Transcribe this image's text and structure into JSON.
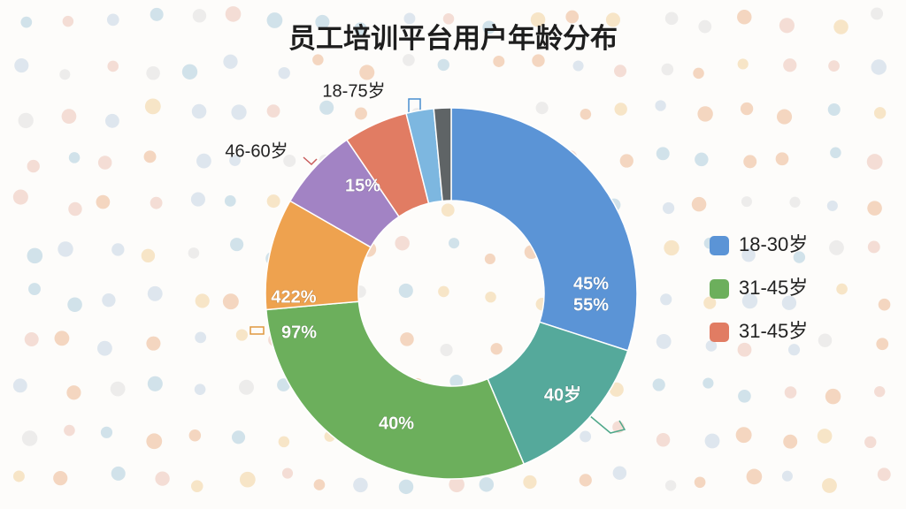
{
  "chart_data": {
    "type": "pie",
    "title": "员工培训平台用户年龄分布",
    "values": [
      30,
      13.6,
      30,
      9.7,
      7.2,
      5.6,
      2.4,
      1.5
    ],
    "colors": [
      "#5b94d6",
      "#55a99b",
      "#6caf5c",
      "#eea24f",
      "#a283c4",
      "#e17c63",
      "#7db7e0",
      "#5f6466"
    ],
    "legend": [
      {
        "name": "18-30岁",
        "color": "#5b94d6"
      },
      {
        "name": "31-45岁",
        "color": "#6caf5c"
      },
      {
        "name": "31-45岁",
        "color": "#e17c63"
      }
    ],
    "annotations": [
      "18-75岁",
      "46-60岁",
      "15%",
      "422%",
      "97%",
      "45%",
      "55%",
      "40岁",
      "40%"
    ]
  }
}
